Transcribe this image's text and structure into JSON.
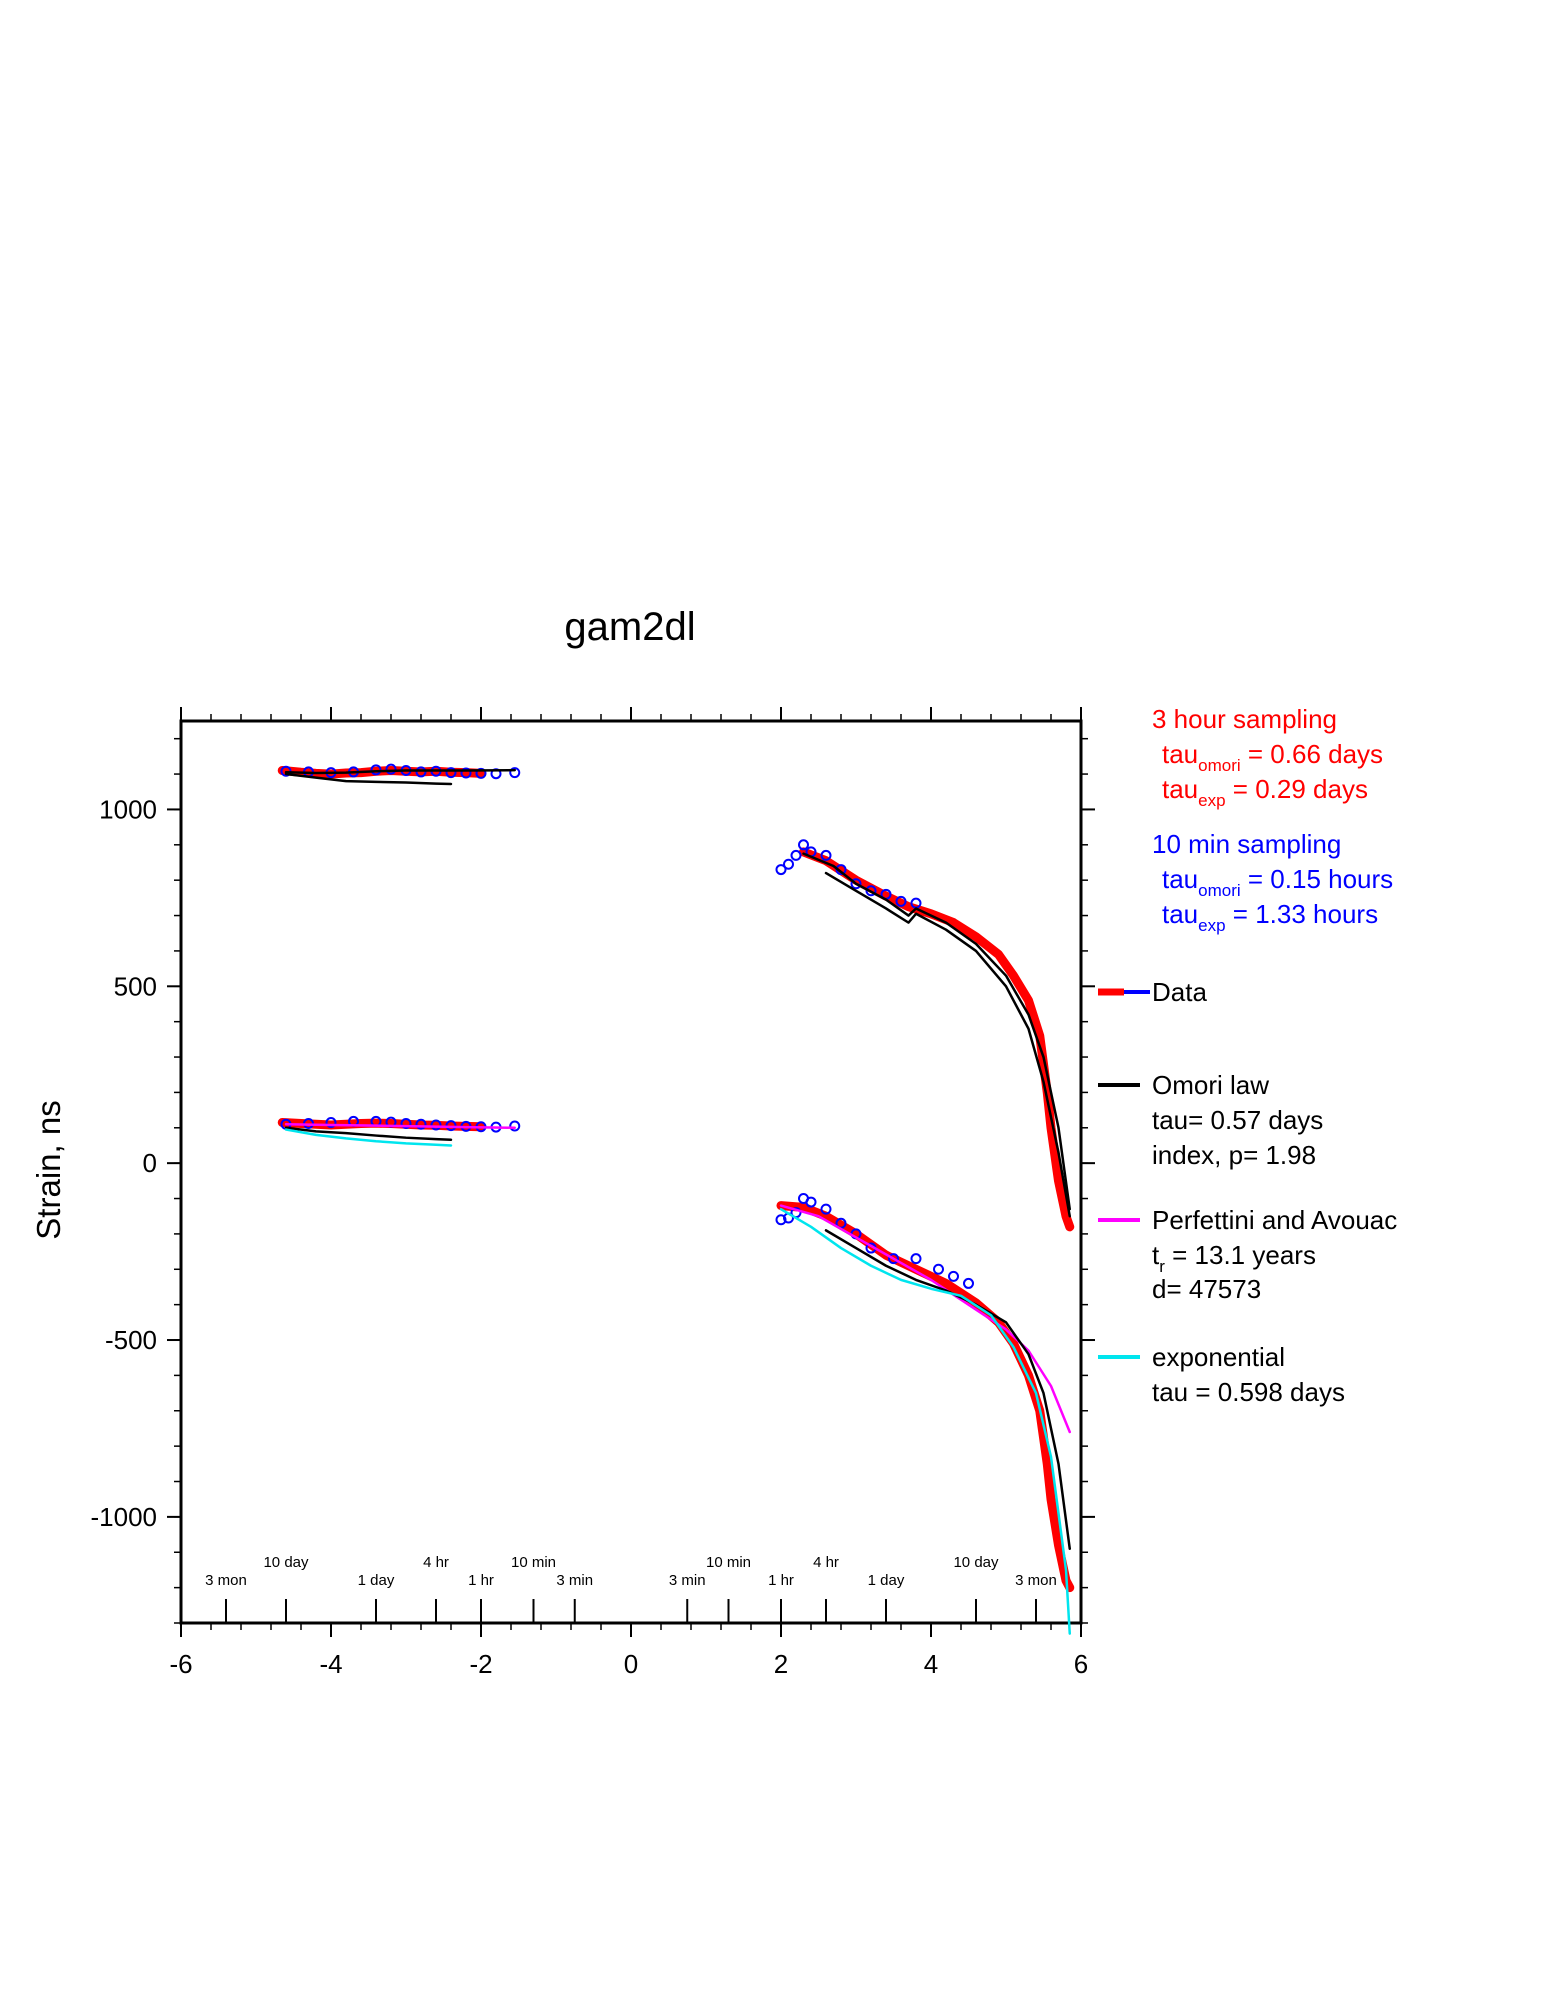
{
  "chart_data": {
    "type": "scatter",
    "title": "gam2dl",
    "xlabel": "",
    "ylabel": "Strain, ns",
    "xlim": [
      -6,
      6
    ],
    "ylim": [
      -1300,
      1250
    ],
    "x_ticks": [
      -6,
      -4,
      -2,
      0,
      2,
      4,
      6
    ],
    "y_ticks": [
      -1000,
      -500,
      0,
      500,
      1000
    ],
    "time_ticks": {
      "left": [
        {
          "x": -5.4,
          "label": "3 mon",
          "row": "low"
        },
        {
          "x": -4.6,
          "label": "10 day",
          "row": "high"
        },
        {
          "x": -3.4,
          "label": "1 day",
          "row": "low"
        },
        {
          "x": -2.6,
          "label": "4 hr",
          "row": "high"
        },
        {
          "x": -2.0,
          "label": "1 hr",
          "row": "low"
        },
        {
          "x": -1.3,
          "label": "10 min",
          "row": "high"
        },
        {
          "x": -0.75,
          "label": "3 min",
          "row": "low"
        }
      ],
      "right": [
        {
          "x": 0.75,
          "label": "3 min",
          "row": "low"
        },
        {
          "x": 1.3,
          "label": "10 min",
          "row": "high"
        },
        {
          "x": 2.0,
          "label": "1 hr",
          "row": "low"
        },
        {
          "x": 2.6,
          "label": "4 hr",
          "row": "high"
        },
        {
          "x": 3.4,
          "label": "1 day",
          "row": "low"
        },
        {
          "x": 4.6,
          "label": "10 day",
          "row": "high"
        },
        {
          "x": 5.4,
          "label": "3 mon",
          "row": "low"
        }
      ]
    },
    "annotations": {
      "red_block": [
        "3 hour sampling",
        "tau",
        "omori",
        " = 0.66 days",
        "tau",
        "exp",
        " = 0.29 days"
      ],
      "blue_block": [
        "10 min sampling",
        "tau",
        "omori",
        " = 0.15 hours",
        "tau",
        "exp",
        " = 1.33 hours"
      ]
    },
    "legend": {
      "placement": "right",
      "entries": [
        {
          "name": "Data",
          "lines": [],
          "color": "#ff0000",
          "color2": "#0000ff"
        },
        {
          "name": "Omori law",
          "lines": [
            "tau= 0.57 days",
            "index, p= 1.98"
          ],
          "color": "#000000"
        },
        {
          "name": "Perfettini and Avouac",
          "lines": [
            "t",
            "r",
            " = 13.1 years",
            "d= 47573"
          ],
          "color": "#ff00ff"
        },
        {
          "name": "exponential",
          "lines": [
            "tau = 0.598 days"
          ],
          "color": "#00e5ee"
        }
      ]
    },
    "series": [
      {
        "name": "Data (3 hour sampling, upper)",
        "color": "#ff0000",
        "style": "thick",
        "x": [
          -4.65,
          -4.4,
          -4.2,
          -4.0,
          -3.8,
          -3.6,
          -3.4,
          -3.2,
          -3.0,
          -2.8,
          -2.6,
          -2.4,
          -2.2,
          -2.0
        ],
        "y": [
          1110,
          1105,
          1102,
          1100,
          1103,
          1104,
          1108,
          1110,
          1108,
          1106,
          1108,
          1105,
          1104,
          1102
        ]
      },
      {
        "name": "Data (10 min sampling, upper)",
        "color": "#0000ff",
        "style": "circles",
        "x": [
          -4.6,
          -4.3,
          -4.0,
          -3.7,
          -3.4,
          -3.2,
          -3.0,
          -2.8,
          -2.6,
          -2.4,
          -2.2,
          -2.0,
          -1.8,
          -1.55
        ],
        "y": [
          1108,
          1106,
          1104,
          1106,
          1112,
          1114,
          1110,
          1106,
          1108,
          1104,
          1103,
          1102,
          1101,
          1104
        ]
      },
      {
        "name": "Omori (upper)",
        "color": "#000000",
        "style": "line",
        "x": [
          -4.6,
          -4.2,
          -3.8,
          -3.4,
          -3.0,
          -2.6,
          -2.2,
          -1.55
        ],
        "y": [
          1105,
          1103,
          1104,
          1108,
          1110,
          1110,
          1110,
          1111
        ]
      },
      {
        "name": "Omori alt (upper)",
        "color": "#000000",
        "style": "line",
        "x": [
          -4.6,
          -4.2,
          -3.8,
          -3.4,
          -3.0,
          -2.6,
          -2.4
        ],
        "y": [
          1100,
          1090,
          1080,
          1078,
          1076,
          1073,
          1072
        ]
      },
      {
        "name": "Data (3 hour sampling, upper right)",
        "color": "#ff0000",
        "style": "thick",
        "x": [
          2.3,
          2.6,
          3.0,
          3.4,
          3.7,
          4.0,
          4.3,
          4.6,
          4.9,
          5.1,
          5.3,
          5.45,
          5.55,
          5.6,
          5.7,
          5.8,
          5.85
        ],
        "y": [
          880,
          855,
          800,
          755,
          725,
          705,
          680,
          640,
          590,
          530,
          460,
          360,
          200,
          100,
          -50,
          -150,
          -180
        ]
      },
      {
        "name": "Data (10 min sampling, upper right)",
        "color": "#0000ff",
        "style": "circles",
        "x": [
          2.0,
          2.1,
          2.2,
          2.3,
          2.4,
          2.6,
          2.8,
          3.0,
          3.2,
          3.4,
          3.6,
          3.8
        ],
        "y": [
          830,
          845,
          870,
          900,
          880,
          870,
          830,
          790,
          770,
          760,
          740,
          735
        ]
      },
      {
        "name": "Omori (upper right)",
        "color": "#000000",
        "style": "line",
        "x": [
          2.3,
          2.7,
          3.0,
          3.4,
          3.7,
          3.8,
          4.2,
          4.6,
          5.0,
          5.3,
          5.5,
          5.7,
          5.85
        ],
        "y": [
          875,
          840,
          790,
          745,
          700,
          720,
          680,
          620,
          530,
          420,
          300,
          100,
          -130
        ]
      },
      {
        "name": "Omori alt (upper right)",
        "color": "#000000",
        "style": "line",
        "x": [
          2.6,
          3.0,
          3.4,
          3.7,
          3.8,
          4.2,
          4.6,
          5.0,
          5.3,
          5.5,
          5.7,
          5.85
        ],
        "y": [
          820,
          770,
          720,
          680,
          705,
          660,
          600,
          500,
          380,
          230,
          30,
          -150
        ]
      },
      {
        "name": "Data (3 hour sampling, lower)",
        "color": "#ff0000",
        "style": "thick",
        "x": [
          -4.65,
          -4.4,
          -4.2,
          -4.0,
          -3.8,
          -3.6,
          -3.4,
          -3.2,
          -3.0,
          -2.8,
          -2.6,
          -2.4,
          -2.2,
          -2.0
        ],
        "y": [
          115,
          112,
          110,
          108,
          110,
          112,
          113,
          112,
          110,
          108,
          107,
          105,
          104,
          103
        ]
      },
      {
        "name": "Data (10 min sampling, lower)",
        "color": "#0000ff",
        "style": "circles",
        "x": [
          -4.6,
          -4.3,
          -4.0,
          -3.7,
          -3.4,
          -3.2,
          -3.0,
          -2.8,
          -2.6,
          -2.4,
          -2.2,
          -2.0,
          -1.8,
          -1.55
        ],
        "y": [
          110,
          112,
          115,
          118,
          118,
          116,
          112,
          110,
          108,
          106,
          104,
          103,
          102,
          105
        ]
      },
      {
        "name": "Perfettini (lower)",
        "color": "#ff00ff",
        "style": "line",
        "x": [
          -4.6,
          -4.0,
          -3.4,
          -2.8,
          -2.2,
          -1.55
        ],
        "y": [
          110,
          108,
          106,
          104,
          102,
          100
        ]
      },
      {
        "name": "Omori (lower)",
        "color": "#000000",
        "style": "line",
        "x": [
          -4.6,
          -4.2,
          -3.8,
          -3.4,
          -3.0,
          -2.6,
          -2.4
        ],
        "y": [
          100,
          90,
          85,
          78,
          72,
          68,
          66
        ]
      },
      {
        "name": "Exponential (lower)",
        "color": "#00e5ee",
        "style": "line",
        "x": [
          -4.6,
          -4.2,
          -3.8,
          -3.4,
          -3.0,
          -2.6,
          -2.4
        ],
        "y": [
          95,
          80,
          70,
          62,
          56,
          52,
          50
        ]
      },
      {
        "name": "Data (3 hour sampling, lower right)",
        "color": "#ff0000",
        "style": "thick",
        "x": [
          2.0,
          2.3,
          2.6,
          3.0,
          3.4,
          3.8,
          4.2,
          4.6,
          4.9,
          5.1,
          5.3,
          5.45,
          5.55,
          5.6,
          5.7,
          5.8,
          5.85
        ],
        "y": [
          -120,
          -125,
          -150,
          -200,
          -260,
          -300,
          -340,
          -395,
          -450,
          -510,
          -600,
          -700,
          -850,
          -950,
          -1080,
          -1180,
          -1200
        ]
      },
      {
        "name": "Data (10 min sampling, lower right)",
        "color": "#0000ff",
        "style": "circles",
        "x": [
          2.0,
          2.1,
          2.2,
          2.3,
          2.4,
          2.6,
          2.8,
          3.0,
          3.2,
          3.5,
          3.8,
          4.1,
          4.3,
          4.5
        ],
        "y": [
          -160,
          -155,
          -140,
          -100,
          -110,
          -130,
          -170,
          -200,
          -240,
          -270,
          -270,
          -300,
          -320,
          -340
        ]
      },
      {
        "name": "Perfettini (lower right)",
        "color": "#ff00ff",
        "style": "line",
        "x": [
          2.0,
          2.5,
          3.0,
          3.5,
          4.0,
          4.5,
          5.0,
          5.3,
          5.6,
          5.85
        ],
        "y": [
          -120,
          -150,
          -210,
          -270,
          -330,
          -400,
          -470,
          -530,
          -630,
          -760
        ]
      },
      {
        "name": "Omori (lower right)",
        "color": "#000000",
        "style": "line",
        "x": [
          2.6,
          3.0,
          3.4,
          3.8,
          4.2,
          4.6,
          5.0,
          5.3,
          5.5,
          5.7,
          5.85
        ],
        "y": [
          -190,
          -240,
          -290,
          -330,
          -360,
          -400,
          -450,
          -540,
          -650,
          -850,
          -1090
        ]
      },
      {
        "name": "Exponential (lower right)",
        "color": "#00e5ee",
        "style": "line",
        "x": [
          2.0,
          2.4,
          2.8,
          3.2,
          3.6,
          4.0,
          4.4,
          4.8,
          5.1,
          5.4,
          5.6,
          5.8,
          5.85
        ],
        "y": [
          -130,
          -180,
          -240,
          -290,
          -330,
          -355,
          -375,
          -430,
          -520,
          -650,
          -830,
          -1150,
          -1330
        ]
      }
    ]
  }
}
